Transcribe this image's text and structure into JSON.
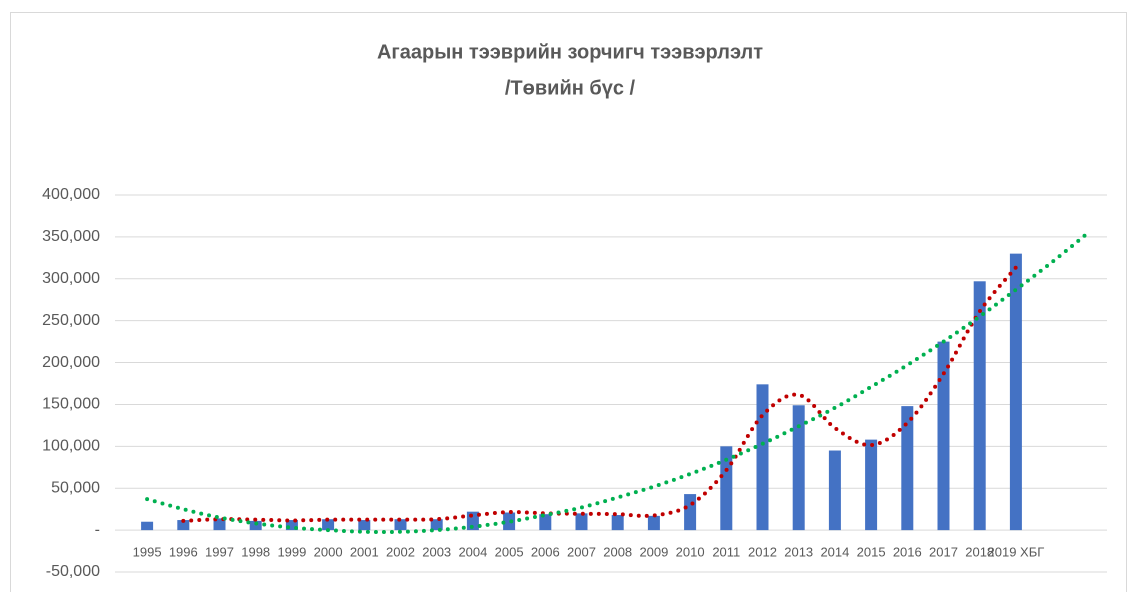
{
  "chart_data": {
    "type": "bar",
    "title": [
      "Агаарын тээврийн зорчигч тээвэрлэлт",
      "/Төвийн бүс /"
    ],
    "categories": [
      "1995",
      "1996",
      "1997",
      "1998",
      "1999",
      "2000",
      "2001",
      "2002",
      "2003",
      "2004",
      "2005",
      "2006",
      "2007",
      "2008",
      "2009",
      "2010",
      "2011",
      "2012",
      "2013",
      "2014",
      "2015",
      "2016",
      "2017",
      "2018",
      "2019 ХБГ"
    ],
    "values": [
      10000,
      12000,
      14000,
      11000,
      12000,
      13000,
      12000,
      13000,
      13000,
      22000,
      21000,
      19000,
      20000,
      18000,
      17000,
      43000,
      100000,
      174000,
      149000,
      95000,
      108000,
      148000,
      225000,
      297000,
      330000
    ],
    "color": "#4472c4",
    "trendlines": [
      {
        "color": "#c00000",
        "values": [
          null,
          11000,
          13000,
          12500,
          11500,
          12500,
          12500,
          12500,
          13000,
          17500,
          21500,
          20000,
          19500,
          19000,
          17500,
          30000,
          71500,
          137000,
          161500,
          122000,
          101500,
          128000,
          186500,
          261000,
          313500
        ]
      },
      {
        "color": "#00b050",
        "forward": 2,
        "values": [
          37000,
          25000,
          15000,
          8000,
          3000,
          0,
          -2000,
          -2000,
          0,
          4000,
          10000,
          18000,
          27000,
          39000,
          52000,
          67000,
          84000,
          103000,
          124000,
          146000,
          171000,
          197000,
          225000,
          255000,
          287000,
          320000,
          355000
        ]
      }
    ],
    "ylim": [
      -50000,
      400000
    ],
    "yticks": [
      {
        "value": -50000,
        "label": "-50,000"
      },
      {
        "value": 0,
        "label": "-"
      },
      {
        "value": 50000,
        "label": "50,000"
      },
      {
        "value": 100000,
        "label": "100,000"
      },
      {
        "value": 150000,
        "label": "150,000"
      },
      {
        "value": 200000,
        "label": "200,000"
      },
      {
        "value": 250000,
        "label": "250,000"
      },
      {
        "value": 300000,
        "label": "300,000"
      },
      {
        "value": 350000,
        "label": "350,000"
      },
      {
        "value": 400000,
        "label": "400,000"
      }
    ],
    "grid": true
  }
}
